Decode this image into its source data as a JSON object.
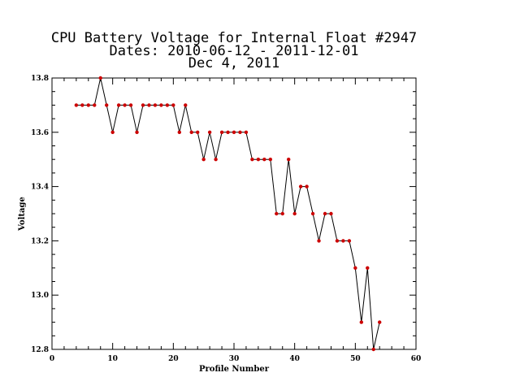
{
  "chart_data": {
    "type": "line",
    "title_lines": [
      "CPU Battery Voltage for Internal Float #2947",
      "Dates:  2010-06-12 -  2011-12-01",
      "Dec  4, 2011"
    ],
    "xlabel": "Profile Number",
    "ylabel": "Voltage",
    "xlim": [
      0,
      60
    ],
    "ylim": [
      12.8,
      13.8
    ],
    "x_ticks": [
      "0",
      "10",
      "20",
      "30",
      "40",
      "50",
      "60"
    ],
    "y_ticks": [
      "12.8",
      "13.0",
      "13.2",
      "13.4",
      "13.6",
      "13.8"
    ],
    "grid": false,
    "series": [
      {
        "line_color": "#000000",
        "marker_color": "#cc0000",
        "x": [
          4,
          5,
          6,
          7,
          8,
          9,
          10,
          11,
          12,
          13,
          14,
          15,
          16,
          17,
          18,
          19,
          20,
          21,
          22,
          23,
          24,
          25,
          26,
          27,
          28,
          29,
          30,
          31,
          32,
          33,
          34,
          35,
          36,
          37,
          38,
          39,
          40,
          41,
          42,
          43,
          44,
          45,
          46,
          47,
          48,
          49,
          50,
          51,
          52,
          53,
          54
        ],
        "y": [
          13.7,
          13.7,
          13.7,
          13.7,
          13.8,
          13.7,
          13.6,
          13.7,
          13.7,
          13.7,
          13.6,
          13.7,
          13.7,
          13.7,
          13.7,
          13.7,
          13.7,
          13.6,
          13.7,
          13.6,
          13.6,
          13.5,
          13.6,
          13.5,
          13.6,
          13.6,
          13.6,
          13.6,
          13.6,
          13.5,
          13.5,
          13.5,
          13.5,
          13.3,
          13.3,
          13.5,
          13.3,
          13.4,
          13.4,
          13.3,
          13.2,
          13.3,
          13.3,
          13.2,
          13.2,
          13.2,
          13.1,
          12.9,
          13.1,
          12.8,
          12.9
        ]
      }
    ]
  }
}
